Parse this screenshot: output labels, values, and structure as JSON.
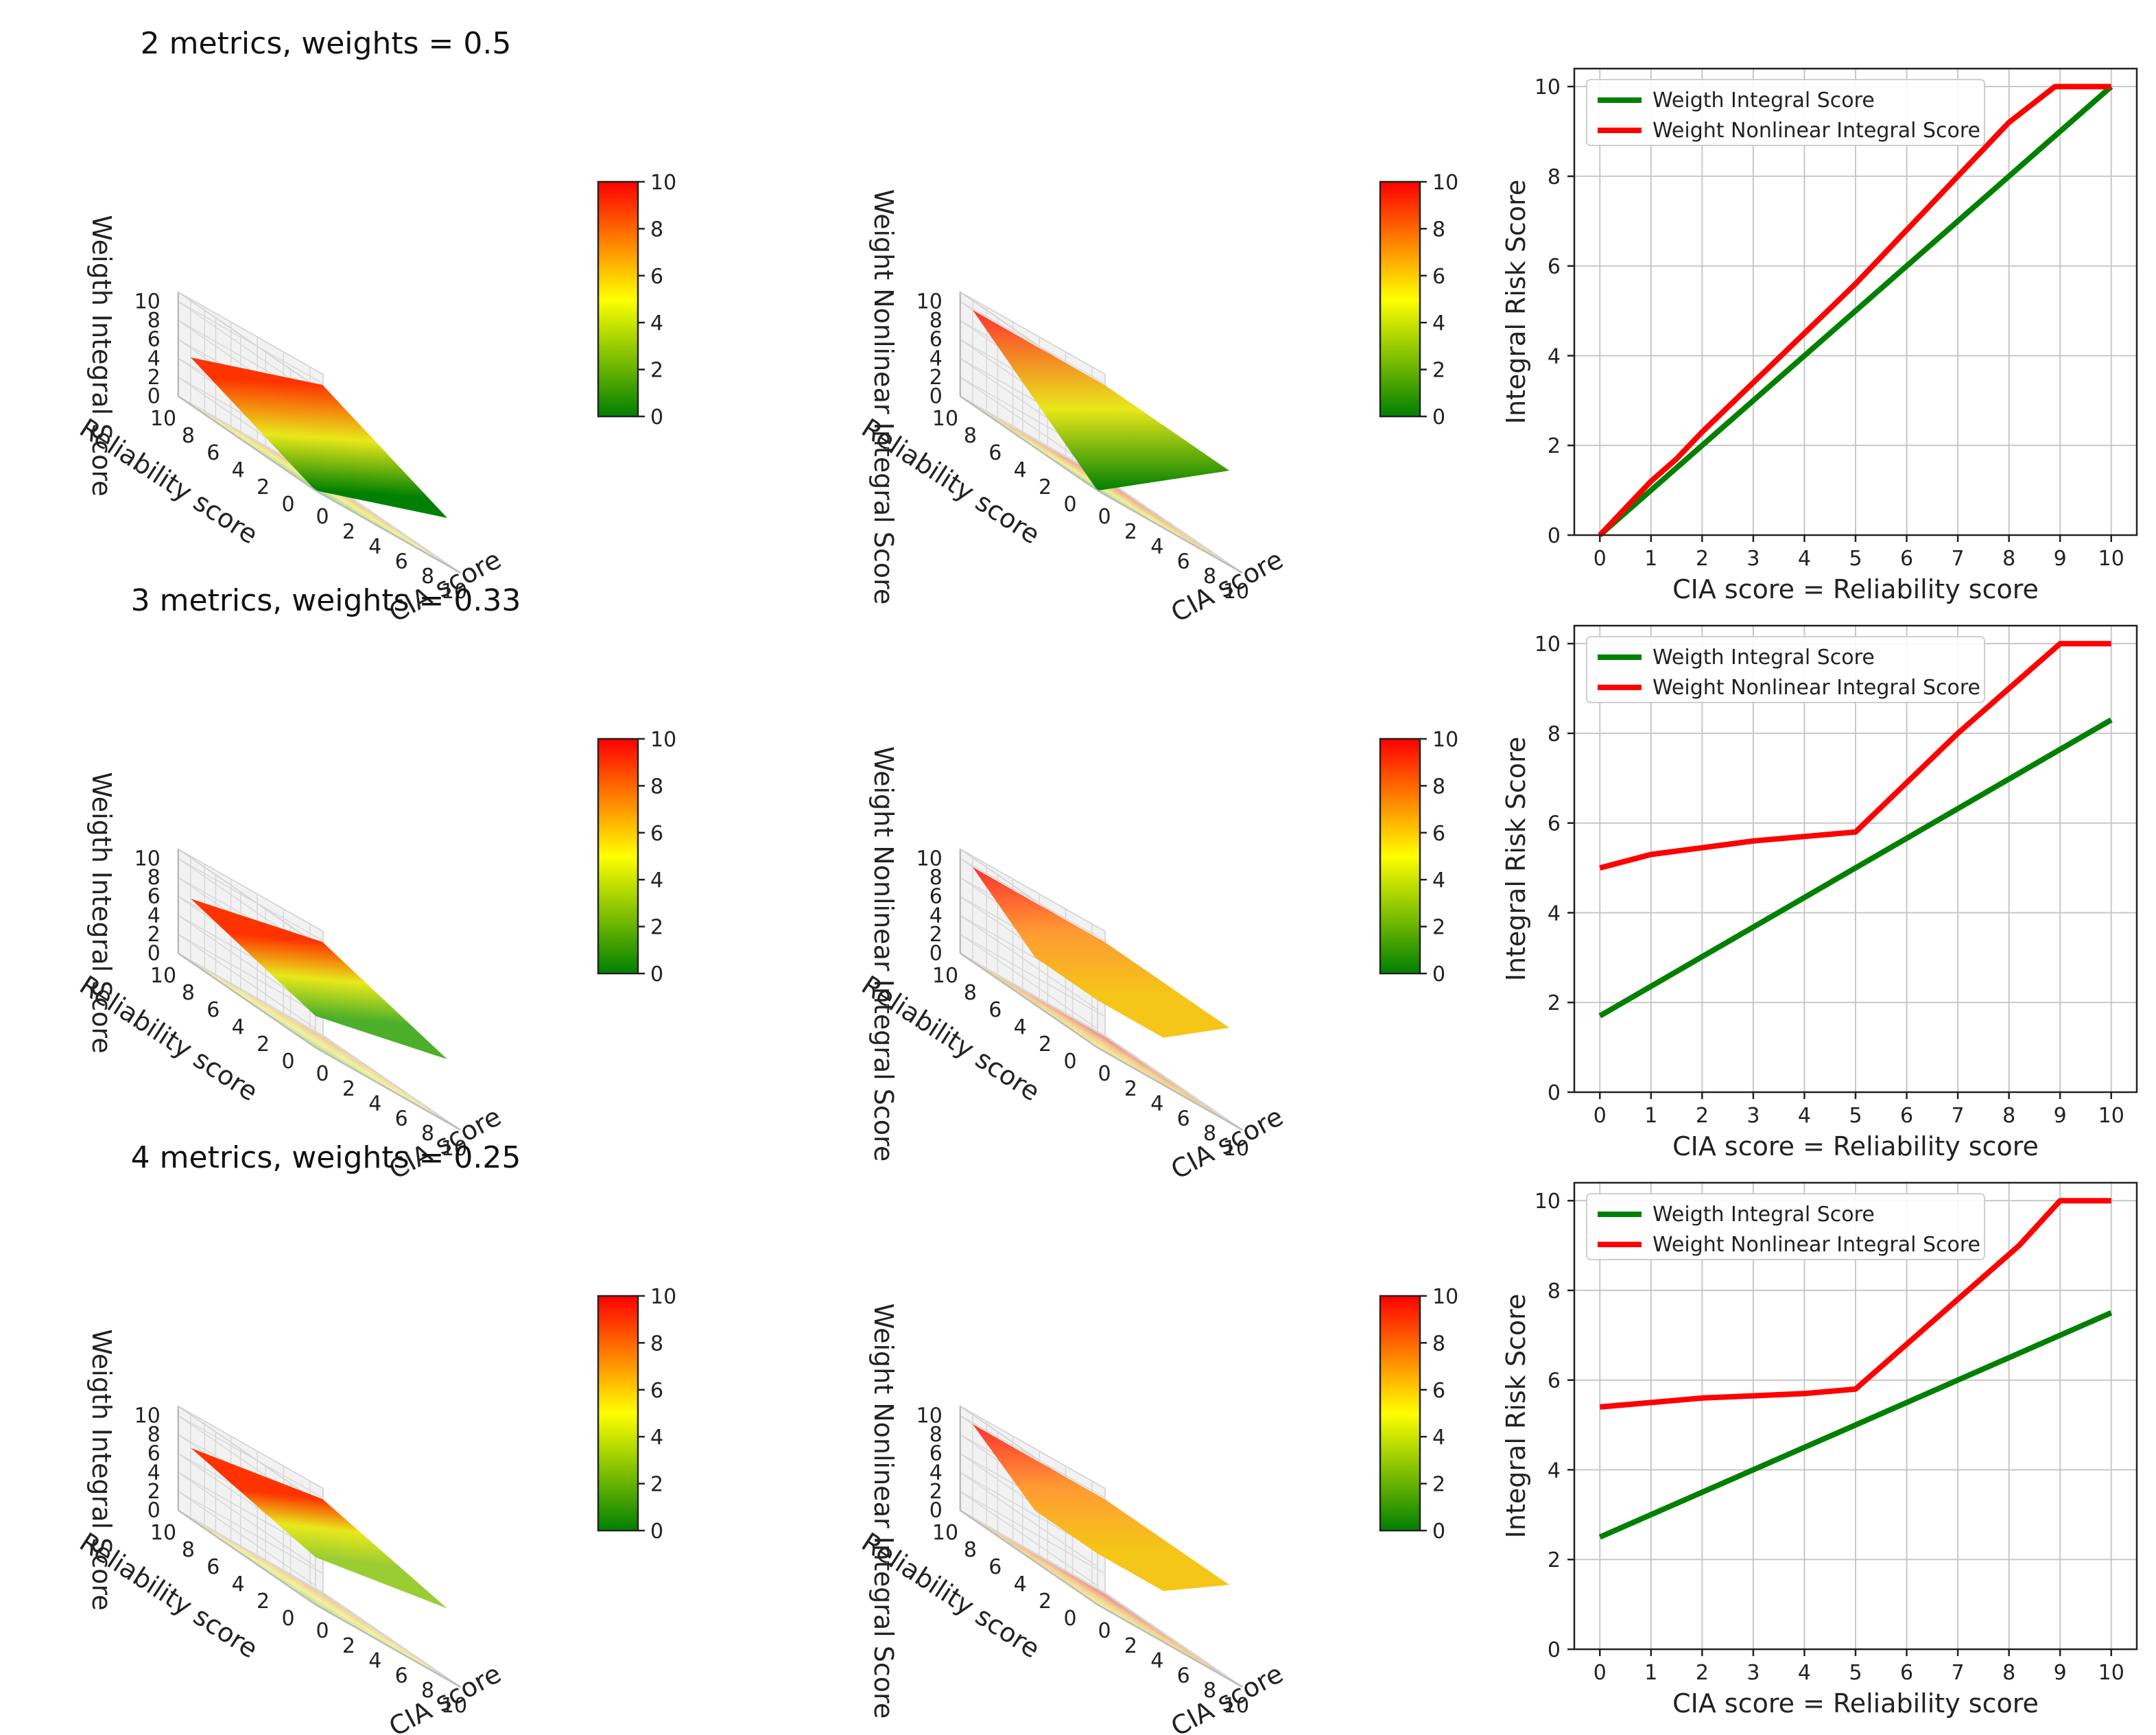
{
  "rows": [
    {
      "title": "2 metrics, weights = 0.5"
    },
    {
      "title": "3 metrics, weights = 0.33"
    },
    {
      "title": "4 metrics, weights = 0.25"
    }
  ],
  "surface_plots": {
    "zlabel_linear": "Weigth Integral Score",
    "zlabel_nonlinear": "Weight Nonlinear Integral Score",
    "xlabel": "CIA score",
    "ylabel": "Reliability score",
    "axis_ticks": [
      "0",
      "2",
      "4",
      "6",
      "8",
      "10"
    ],
    "colorbar_ticks": [
      "0",
      "2",
      "4",
      "6",
      "8",
      "10"
    ],
    "colormap": [
      "#008000",
      "#ffff00",
      "#ff0000"
    ]
  },
  "chart_data": [
    {
      "type": "line",
      "title": "",
      "xlabel": "CIA score = Reliability score",
      "ylabel": "Integral Risk Score",
      "xlim": [
        -0.5,
        10.5
      ],
      "ylim": [
        0,
        10.4
      ],
      "xticks": [
        "0",
        "1",
        "2",
        "3",
        "4",
        "5",
        "6",
        "7",
        "8",
        "9",
        "10"
      ],
      "yticks": [
        "0",
        "2",
        "4",
        "6",
        "8",
        "10"
      ],
      "grid": true,
      "legend_position": "top-left",
      "series": [
        {
          "name": "Weigth Integral Score",
          "color": "#008000",
          "x": [
            0,
            10
          ],
          "y": [
            0,
            10
          ]
        },
        {
          "name": "Weight Nonlinear Integral Score",
          "color": "#ff0000",
          "x": [
            0,
            0.5,
            1,
            1.5,
            2,
            3,
            4,
            5,
            6,
            7,
            8,
            8.9,
            10
          ],
          "y": [
            0,
            0.6,
            1.2,
            1.7,
            2.3,
            3.4,
            4.5,
            5.6,
            6.8,
            8.0,
            9.2,
            10,
            10
          ]
        }
      ]
    },
    {
      "type": "line",
      "title": "",
      "xlabel": "CIA score = Reliability score",
      "ylabel": "Integral Risk Score",
      "xlim": [
        -0.5,
        10.5
      ],
      "ylim": [
        0,
        10.4
      ],
      "xticks": [
        "0",
        "1",
        "2",
        "3",
        "4",
        "5",
        "6",
        "7",
        "8",
        "9",
        "10"
      ],
      "yticks": [
        "0",
        "2",
        "4",
        "6",
        "8",
        "10"
      ],
      "grid": true,
      "legend_position": "top-left",
      "series": [
        {
          "name": "Weigth Integral Score",
          "color": "#008000",
          "x": [
            0,
            10
          ],
          "y": [
            1.7,
            8.3
          ]
        },
        {
          "name": "Weight Nonlinear Integral Score",
          "color": "#ff0000",
          "x": [
            0,
            1,
            2,
            3,
            4,
            5,
            7,
            9,
            10
          ],
          "y": [
            5.0,
            5.3,
            5.45,
            5.6,
            5.7,
            5.8,
            8.0,
            10,
            10
          ]
        }
      ]
    },
    {
      "type": "line",
      "title": "",
      "xlabel": "CIA score = Reliability score",
      "ylabel": "Integral Risk Score",
      "xlim": [
        -0.5,
        10.5
      ],
      "ylim": [
        0,
        10.4
      ],
      "xticks": [
        "0",
        "1",
        "2",
        "3",
        "4",
        "5",
        "6",
        "7",
        "8",
        "9",
        "10"
      ],
      "yticks": [
        "0",
        "2",
        "4",
        "6",
        "8",
        "10"
      ],
      "grid": true,
      "legend_position": "top-left",
      "series": [
        {
          "name": "Weigth Integral Score",
          "color": "#008000",
          "x": [
            0,
            10
          ],
          "y": [
            2.5,
            7.5
          ]
        },
        {
          "name": "Weight Nonlinear Integral Score",
          "color": "#ff0000",
          "x": [
            0,
            1,
            2,
            3,
            4,
            5,
            8.2,
            9,
            10
          ],
          "y": [
            5.4,
            5.5,
            5.6,
            5.65,
            5.7,
            5.8,
            9.0,
            10,
            10
          ]
        }
      ]
    }
  ]
}
